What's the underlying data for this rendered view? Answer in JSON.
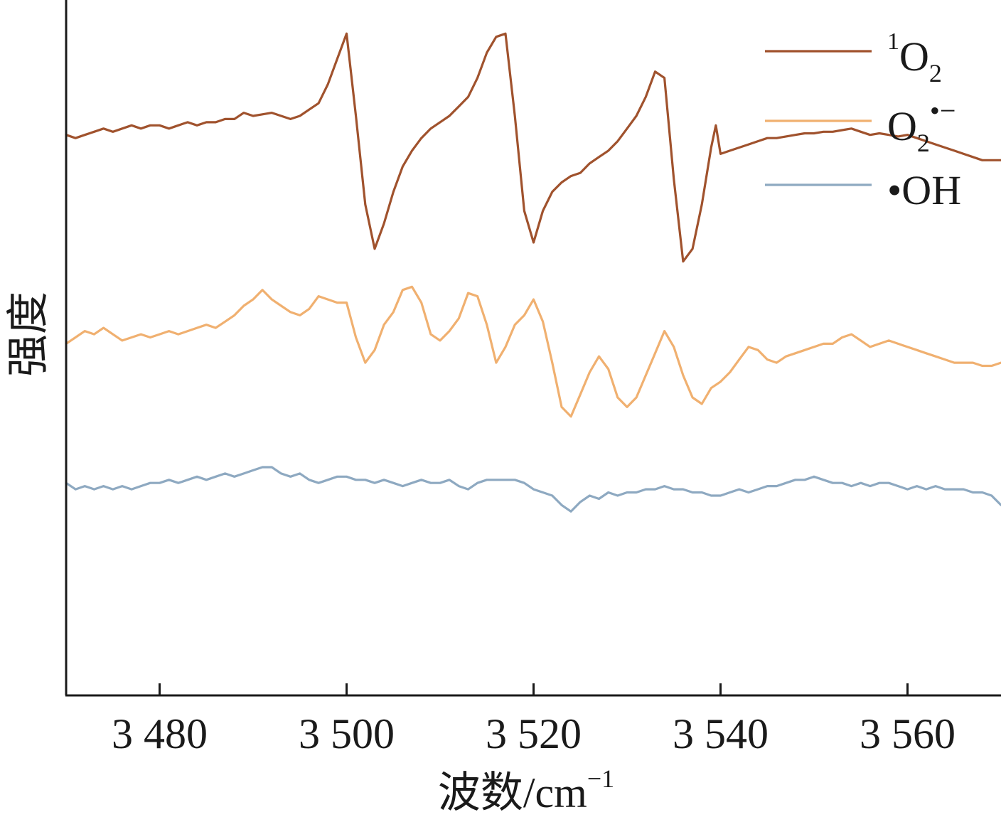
{
  "chart_data": {
    "type": "line",
    "xlabel": "波数/cm",
    "xlabel_sup": "−1",
    "ylabel": "强度",
    "xlim": [
      3470,
      3570
    ],
    "xticks": [
      3480,
      3500,
      3520,
      3540,
      3560
    ],
    "xtick_labels": [
      "3 480",
      "3 500",
      "3 520",
      "3 540",
      "3 560"
    ],
    "y_ticks_shown": false,
    "grid": false,
    "legend_position": "top-right",
    "series": [
      {
        "id": "singlet_oxygen",
        "legend": {
          "pre_sup": "1",
          "main": "O",
          "sub": "2",
          "post_sup": ""
        },
        "color": "#a0522d",
        "points": [
          [
            3470,
            5.4
          ],
          [
            3471,
            5.3
          ],
          [
            3472,
            5.4
          ],
          [
            3473,
            5.5
          ],
          [
            3474,
            5.6
          ],
          [
            3475,
            5.5
          ],
          [
            3476,
            5.6
          ],
          [
            3477,
            5.7
          ],
          [
            3478,
            5.6
          ],
          [
            3479,
            5.7
          ],
          [
            3480,
            5.7
          ],
          [
            3481,
            5.6
          ],
          [
            3482,
            5.7
          ],
          [
            3483,
            5.8
          ],
          [
            3484,
            5.7
          ],
          [
            3485,
            5.8
          ],
          [
            3486,
            5.8
          ],
          [
            3487,
            5.9
          ],
          [
            3488,
            5.9
          ],
          [
            3489,
            6.1
          ],
          [
            3490,
            6.0
          ],
          [
            3491,
            6.05
          ],
          [
            3492,
            6.1
          ],
          [
            3493,
            6.0
          ],
          [
            3494,
            5.9
          ],
          [
            3495,
            6.0
          ],
          [
            3496,
            6.2
          ],
          [
            3497,
            6.4
          ],
          [
            3498,
            7.0
          ],
          [
            3499,
            7.8
          ],
          [
            3500,
            8.6
          ],
          [
            3501,
            6.0
          ],
          [
            3502,
            3.2
          ],
          [
            3503,
            1.8
          ],
          [
            3504,
            2.6
          ],
          [
            3505,
            3.6
          ],
          [
            3506,
            4.4
          ],
          [
            3507,
            4.9
          ],
          [
            3508,
            5.3
          ],
          [
            3509,
            5.6
          ],
          [
            3510,
            5.8
          ],
          [
            3511,
            6.0
          ],
          [
            3512,
            6.3
          ],
          [
            3513,
            6.6
          ],
          [
            3514,
            7.2
          ],
          [
            3515,
            8.0
          ],
          [
            3516,
            8.5
          ],
          [
            3517,
            8.6
          ],
          [
            3518,
            6.0
          ],
          [
            3519,
            3.0
          ],
          [
            3520,
            2.0
          ],
          [
            3521,
            3.0
          ],
          [
            3522,
            3.6
          ],
          [
            3523,
            3.9
          ],
          [
            3524,
            4.1
          ],
          [
            3525,
            4.2
          ],
          [
            3526,
            4.5
          ],
          [
            3527,
            4.7
          ],
          [
            3528,
            4.9
          ],
          [
            3529,
            5.2
          ],
          [
            3530,
            5.6
          ],
          [
            3531,
            6.0
          ],
          [
            3532,
            6.6
          ],
          [
            3533,
            7.4
          ],
          [
            3534,
            7.2
          ],
          [
            3535,
            4.0
          ],
          [
            3536,
            1.4
          ],
          [
            3537,
            1.8
          ],
          [
            3538,
            3.2
          ],
          [
            3539,
            5.0
          ],
          [
            3539.5,
            5.7
          ],
          [
            3540,
            4.8
          ],
          [
            3541,
            4.9
          ],
          [
            3542,
            5.0
          ],
          [
            3543,
            5.1
          ],
          [
            3544,
            5.2
          ],
          [
            3545,
            5.3
          ],
          [
            3546,
            5.3
          ],
          [
            3547,
            5.35
          ],
          [
            3548,
            5.4
          ],
          [
            3549,
            5.45
          ],
          [
            3550,
            5.45
          ],
          [
            3551,
            5.5
          ],
          [
            3552,
            5.5
          ],
          [
            3553,
            5.55
          ],
          [
            3554,
            5.6
          ],
          [
            3555,
            5.5
          ],
          [
            3556,
            5.4
          ],
          [
            3557,
            5.45
          ],
          [
            3558,
            5.4
          ],
          [
            3559,
            5.35
          ],
          [
            3560,
            5.4
          ],
          [
            3561,
            5.3
          ],
          [
            3562,
            5.2
          ],
          [
            3563,
            5.1
          ],
          [
            3564,
            5.0
          ],
          [
            3565,
            4.9
          ],
          [
            3566,
            4.8
          ],
          [
            3567,
            4.7
          ],
          [
            3568,
            4.6
          ],
          [
            3569,
            4.6
          ],
          [
            3570,
            4.6
          ]
        ]
      },
      {
        "id": "superoxide",
        "legend": {
          "pre_sup": "",
          "main": "O",
          "sub": "2",
          "post_sup": "•−"
        },
        "color": "#f0b070",
        "points": [
          [
            3470,
            -1.2
          ],
          [
            3471,
            -1.0
          ],
          [
            3472,
            -0.8
          ],
          [
            3473,
            -0.9
          ],
          [
            3474,
            -0.7
          ],
          [
            3475,
            -0.9
          ],
          [
            3476,
            -1.1
          ],
          [
            3477,
            -1.0
          ],
          [
            3478,
            -0.9
          ],
          [
            3479,
            -1.0
          ],
          [
            3480,
            -0.9
          ],
          [
            3481,
            -0.8
          ],
          [
            3482,
            -0.9
          ],
          [
            3483,
            -0.8
          ],
          [
            3484,
            -0.7
          ],
          [
            3485,
            -0.6
          ],
          [
            3486,
            -0.7
          ],
          [
            3487,
            -0.5
          ],
          [
            3488,
            -0.3
          ],
          [
            3489,
            0.0
          ],
          [
            3490,
            0.2
          ],
          [
            3491,
            0.5
          ],
          [
            3492,
            0.2
          ],
          [
            3493,
            0.0
          ],
          [
            3494,
            -0.2
          ],
          [
            3495,
            -0.3
          ],
          [
            3496,
            -0.1
          ],
          [
            3497,
            0.3
          ],
          [
            3498,
            0.2
          ],
          [
            3499,
            0.1
          ],
          [
            3500,
            0.1
          ],
          [
            3501,
            -1.0
          ],
          [
            3502,
            -1.8
          ],
          [
            3503,
            -1.4
          ],
          [
            3504,
            -0.6
          ],
          [
            3505,
            -0.2
          ],
          [
            3506,
            0.5
          ],
          [
            3507,
            0.6
          ],
          [
            3508,
            0.1
          ],
          [
            3509,
            -0.9
          ],
          [
            3510,
            -1.1
          ],
          [
            3511,
            -0.8
          ],
          [
            3512,
            -0.4
          ],
          [
            3513,
            0.4
          ],
          [
            3514,
            0.3
          ],
          [
            3515,
            -0.6
          ],
          [
            3516,
            -1.8
          ],
          [
            3517,
            -1.3
          ],
          [
            3518,
            -0.6
          ],
          [
            3519,
            -0.3
          ],
          [
            3520,
            0.2
          ],
          [
            3521,
            -0.5
          ],
          [
            3522,
            -1.8
          ],
          [
            3523,
            -3.2
          ],
          [
            3524,
            -3.5
          ],
          [
            3525,
            -2.8
          ],
          [
            3526,
            -2.1
          ],
          [
            3527,
            -1.6
          ],
          [
            3528,
            -2.0
          ],
          [
            3529,
            -2.9
          ],
          [
            3530,
            -3.2
          ],
          [
            3531,
            -2.9
          ],
          [
            3532,
            -2.2
          ],
          [
            3533,
            -1.5
          ],
          [
            3534,
            -0.8
          ],
          [
            3535,
            -1.3
          ],
          [
            3536,
            -2.2
          ],
          [
            3537,
            -2.9
          ],
          [
            3538,
            -3.1
          ],
          [
            3539,
            -2.6
          ],
          [
            3540,
            -2.4
          ],
          [
            3541,
            -2.1
          ],
          [
            3542,
            -1.7
          ],
          [
            3543,
            -1.3
          ],
          [
            3544,
            -1.4
          ],
          [
            3545,
            -1.7
          ],
          [
            3546,
            -1.8
          ],
          [
            3547,
            -1.6
          ],
          [
            3548,
            -1.5
          ],
          [
            3549,
            -1.4
          ],
          [
            3550,
            -1.3
          ],
          [
            3551,
            -1.2
          ],
          [
            3552,
            -1.2
          ],
          [
            3553,
            -1.0
          ],
          [
            3554,
            -0.9
          ],
          [
            3555,
            -1.1
          ],
          [
            3556,
            -1.3
          ],
          [
            3557,
            -1.2
          ],
          [
            3558,
            -1.1
          ],
          [
            3559,
            -1.2
          ],
          [
            3560,
            -1.3
          ],
          [
            3561,
            -1.4
          ],
          [
            3562,
            -1.5
          ],
          [
            3563,
            -1.6
          ],
          [
            3564,
            -1.7
          ],
          [
            3565,
            -1.8
          ],
          [
            3566,
            -1.8
          ],
          [
            3567,
            -1.8
          ],
          [
            3568,
            -1.9
          ],
          [
            3569,
            -1.9
          ],
          [
            3570,
            -1.8
          ]
        ]
      },
      {
        "id": "hydroxyl",
        "legend": {
          "pre_sup": "",
          "main": "•OH",
          "sub": "",
          "post_sup": ""
        },
        "color": "#8ea9c1",
        "points": [
          [
            3470,
            -5.6
          ],
          [
            3471,
            -5.8
          ],
          [
            3472,
            -5.7
          ],
          [
            3473,
            -5.8
          ],
          [
            3474,
            -5.7
          ],
          [
            3475,
            -5.8
          ],
          [
            3476,
            -5.7
          ],
          [
            3477,
            -5.8
          ],
          [
            3478,
            -5.7
          ],
          [
            3479,
            -5.6
          ],
          [
            3480,
            -5.6
          ],
          [
            3481,
            -5.5
          ],
          [
            3482,
            -5.6
          ],
          [
            3483,
            -5.5
          ],
          [
            3484,
            -5.4
          ],
          [
            3485,
            -5.5
          ],
          [
            3486,
            -5.4
          ],
          [
            3487,
            -5.3
          ],
          [
            3488,
            -5.4
          ],
          [
            3489,
            -5.3
          ],
          [
            3490,
            -5.2
          ],
          [
            3491,
            -5.1
          ],
          [
            3492,
            -5.1
          ],
          [
            3493,
            -5.3
          ],
          [
            3494,
            -5.4
          ],
          [
            3495,
            -5.3
          ],
          [
            3496,
            -5.5
          ],
          [
            3497,
            -5.6
          ],
          [
            3498,
            -5.5
          ],
          [
            3499,
            -5.4
          ],
          [
            3500,
            -5.4
          ],
          [
            3501,
            -5.5
          ],
          [
            3502,
            -5.5
          ],
          [
            3503,
            -5.6
          ],
          [
            3504,
            -5.5
          ],
          [
            3505,
            -5.6
          ],
          [
            3506,
            -5.7
          ],
          [
            3507,
            -5.6
          ],
          [
            3508,
            -5.5
          ],
          [
            3509,
            -5.6
          ],
          [
            3510,
            -5.6
          ],
          [
            3511,
            -5.5
          ],
          [
            3512,
            -5.7
          ],
          [
            3513,
            -5.8
          ],
          [
            3514,
            -5.6
          ],
          [
            3515,
            -5.5
          ],
          [
            3516,
            -5.5
          ],
          [
            3517,
            -5.5
          ],
          [
            3518,
            -5.5
          ],
          [
            3519,
            -5.6
          ],
          [
            3520,
            -5.8
          ],
          [
            3521,
            -5.9
          ],
          [
            3522,
            -6.0
          ],
          [
            3523,
            -6.3
          ],
          [
            3524,
            -6.5
          ],
          [
            3525,
            -6.2
          ],
          [
            3526,
            -6.0
          ],
          [
            3527,
            -6.1
          ],
          [
            3528,
            -5.9
          ],
          [
            3529,
            -6.0
          ],
          [
            3530,
            -5.9
          ],
          [
            3531,
            -5.9
          ],
          [
            3532,
            -5.8
          ],
          [
            3533,
            -5.8
          ],
          [
            3534,
            -5.7
          ],
          [
            3535,
            -5.8
          ],
          [
            3536,
            -5.8
          ],
          [
            3537,
            -5.9
          ],
          [
            3538,
            -5.9
          ],
          [
            3539,
            -6.0
          ],
          [
            3540,
            -6.0
          ],
          [
            3541,
            -5.9
          ],
          [
            3542,
            -5.8
          ],
          [
            3543,
            -5.9
          ],
          [
            3544,
            -5.8
          ],
          [
            3545,
            -5.7
          ],
          [
            3546,
            -5.7
          ],
          [
            3547,
            -5.6
          ],
          [
            3548,
            -5.5
          ],
          [
            3549,
            -5.5
          ],
          [
            3550,
            -5.4
          ],
          [
            3551,
            -5.5
          ],
          [
            3552,
            -5.6
          ],
          [
            3553,
            -5.6
          ],
          [
            3554,
            -5.7
          ],
          [
            3555,
            -5.6
          ],
          [
            3556,
            -5.7
          ],
          [
            3557,
            -5.6
          ],
          [
            3558,
            -5.6
          ],
          [
            3559,
            -5.7
          ],
          [
            3560,
            -5.8
          ],
          [
            3561,
            -5.7
          ],
          [
            3562,
            -5.8
          ],
          [
            3563,
            -5.7
          ],
          [
            3564,
            -5.8
          ],
          [
            3565,
            -5.8
          ],
          [
            3566,
            -5.8
          ],
          [
            3567,
            -5.9
          ],
          [
            3568,
            -5.9
          ],
          [
            3569,
            -6.0
          ],
          [
            3570,
            -6.3
          ]
        ]
      }
    ]
  }
}
